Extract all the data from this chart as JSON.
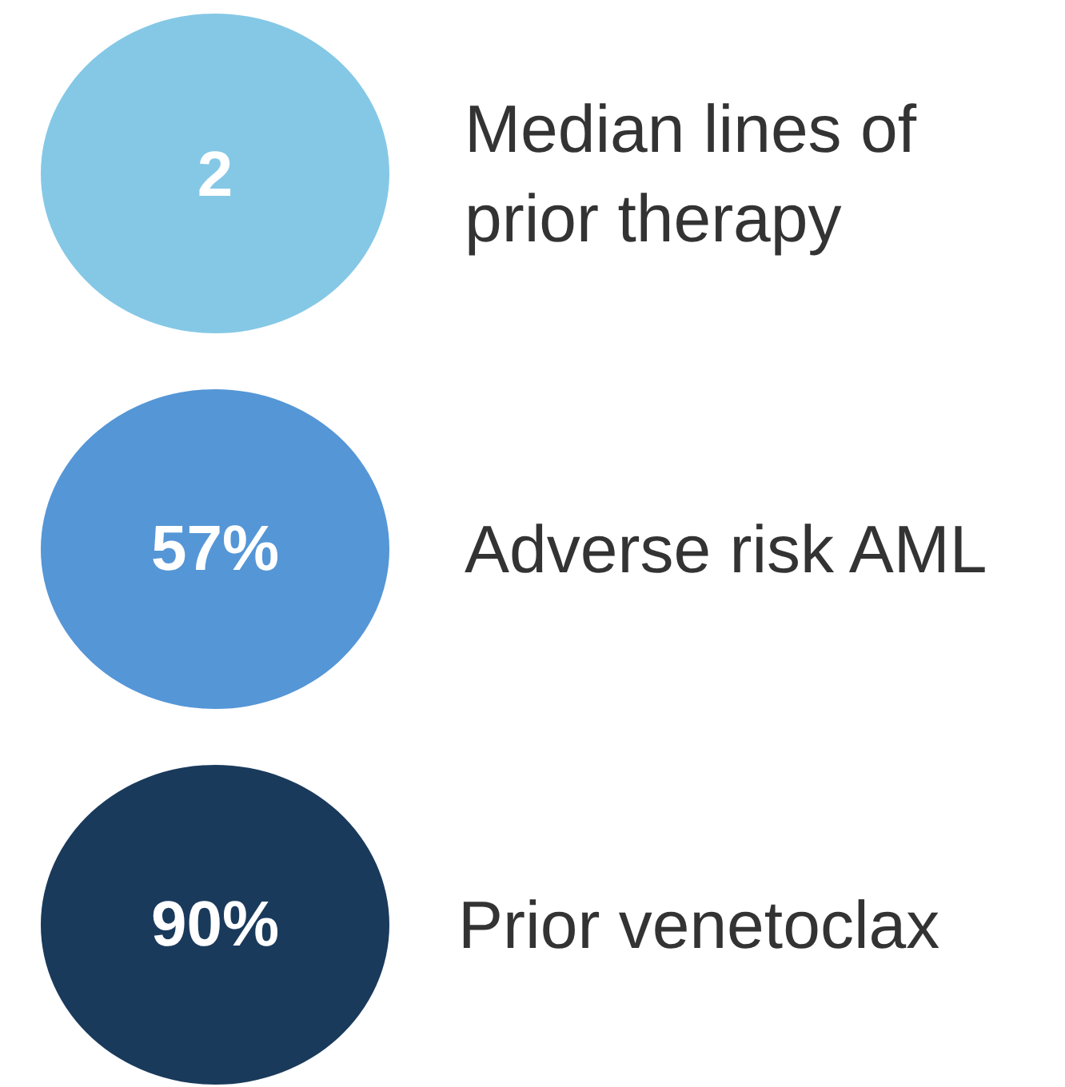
{
  "chart_data": {
    "type": "other",
    "categories": [
      "Median lines of\nprior therapy",
      "Adverse risk AML",
      "Prior venetoclax"
    ],
    "values": [
      2,
      57,
      90
    ],
    "value_labels": [
      "2",
      "57%",
      "90%"
    ],
    "colors": [
      "#85c8e6",
      "#5596d6",
      "#1a3a5c"
    ]
  }
}
